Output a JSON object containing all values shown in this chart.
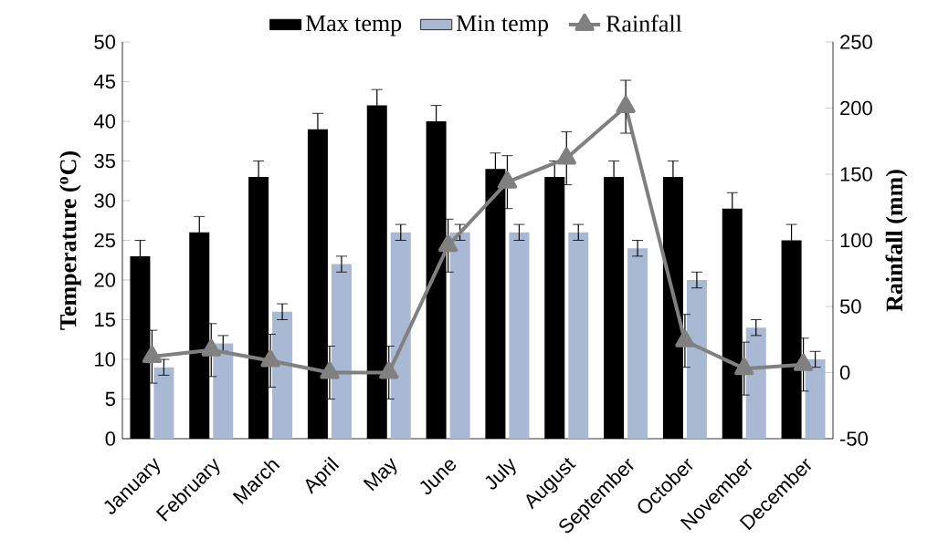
{
  "chart_data": {
    "type": "bar",
    "categories": [
      "January",
      "February",
      "March",
      "April",
      "May",
      "June",
      "July",
      "August",
      "September",
      "October",
      "November",
      "December"
    ],
    "series": [
      {
        "name": "Max temp",
        "color": "#000000",
        "values": [
          23,
          26,
          33,
          39,
          42,
          40,
          34,
          33,
          33,
          33,
          29,
          25
        ],
        "errors": [
          2,
          2,
          2,
          2,
          2,
          2,
          2,
          2,
          2,
          2,
          2,
          2
        ]
      },
      {
        "name": "Min temp",
        "color": "#a9b8d3",
        "values": [
          9,
          12,
          16,
          22,
          26,
          26,
          26,
          26,
          24,
          20,
          14,
          10
        ],
        "errors": [
          1,
          1,
          1,
          1,
          1,
          1,
          1,
          1,
          1,
          1,
          1,
          1
        ]
      },
      {
        "name": "Rainfall",
        "type": "line",
        "axis": "y2",
        "color": "#808080",
        "marker": "triangle",
        "values": [
          12,
          17,
          9,
          0,
          0,
          96,
          144,
          162,
          201,
          24,
          3,
          6
        ],
        "errors": [
          20,
          20,
          20,
          20,
          20,
          20,
          20,
          20,
          20,
          20,
          20,
          20
        ]
      }
    ],
    "ylabel": "Temperature ($^{o}$C)",
    "y2label": "Rainfall (mm)",
    "ylim": [
      0,
      50
    ],
    "yticks": [
      0,
      5,
      10,
      15,
      20,
      25,
      30,
      35,
      40,
      45,
      50
    ],
    "y2lim": [
      -50,
      250
    ],
    "y2ticks": [
      -50,
      0,
      50,
      100,
      150,
      200,
      250
    ],
    "legend": "top",
    "grid": false
  }
}
